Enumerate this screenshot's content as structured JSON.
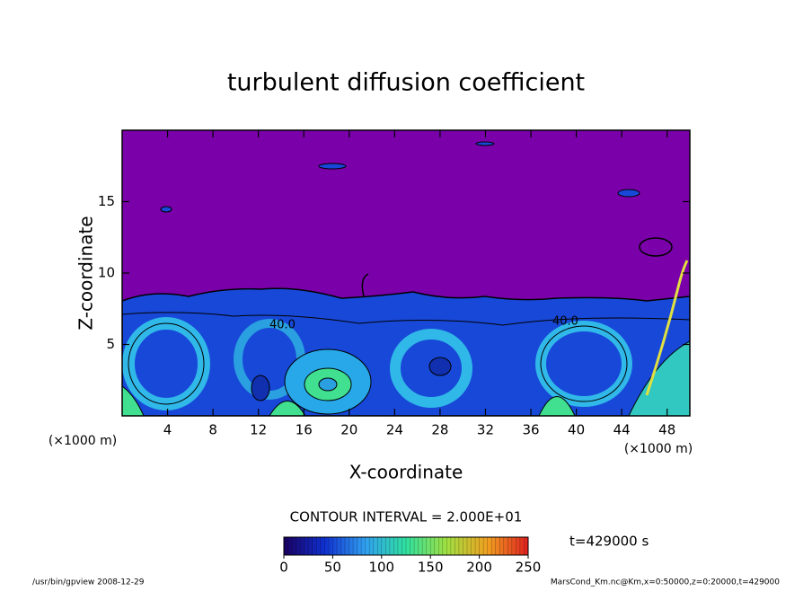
{
  "chart_data": {
    "type": "contour",
    "title": "turbulent diffusion coefficient",
    "x_label": "X-coordinate",
    "y_label": "Z-coordinate",
    "x_unit": "(×1000 m)",
    "y_unit": "(×1000 m)",
    "xlim": [
      0,
      50
    ],
    "ylim": [
      0,
      20
    ],
    "xticks": [
      4,
      8,
      12,
      16,
      20,
      24,
      28,
      32,
      36,
      40,
      44,
      48
    ],
    "yticks": [
      5,
      10,
      15
    ],
    "contour_labels": [
      "40.0",
      "40.0"
    ],
    "contour_interval": "CONTOUR INTERVAL = 2.000E+01",
    "time_label": "t=429000 s",
    "colorbar": {
      "clim": [
        0,
        250
      ],
      "ticks": [
        0,
        50,
        100,
        150,
        200,
        250
      ],
      "colors": [
        "#1a0060",
        "#1030d0",
        "#30a0f0",
        "#30e0a0",
        "#a0e040",
        "#f0a020",
        "#e02020"
      ]
    },
    "footer_left": "/usr/bin/gpview   2008-12-29",
    "footer_right": "MarsCond_Km.nc@Km,x=0:50000,z=0:20000,t=429000"
  }
}
